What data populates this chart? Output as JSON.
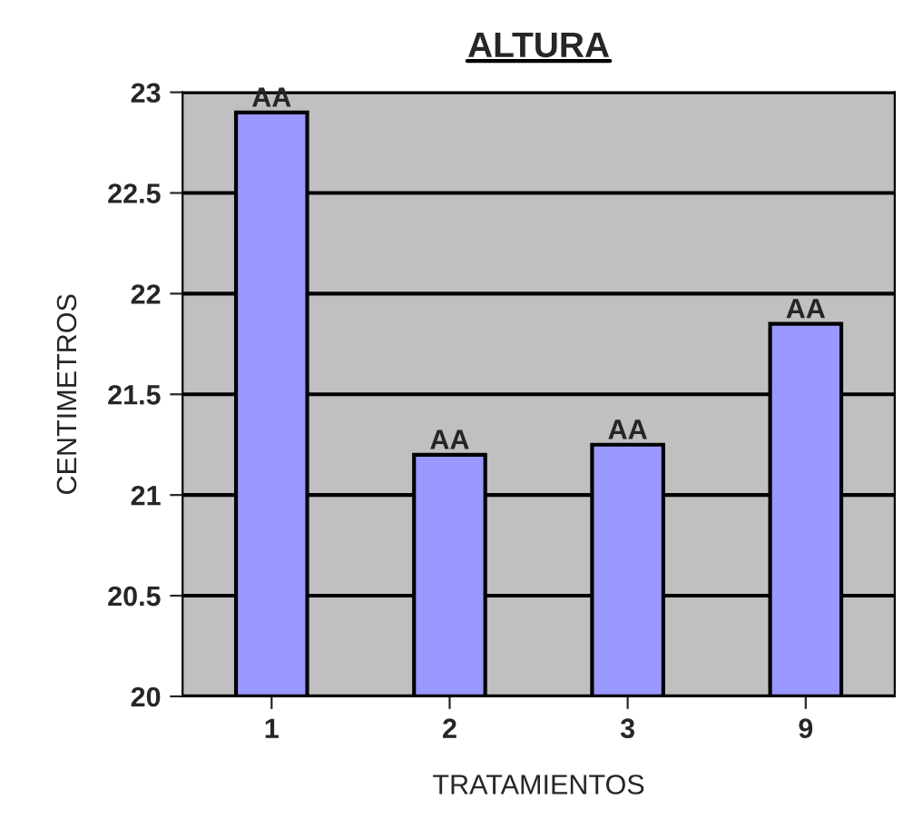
{
  "chart_data": {
    "type": "bar",
    "title": "ALTURA",
    "xlabel": "TRATAMIENTOS",
    "ylabel": "CENTIMETROS",
    "categories": [
      "1",
      "2",
      "3",
      "9"
    ],
    "values": [
      22.9,
      21.2,
      21.25,
      21.85
    ],
    "value_labels": [
      "AA",
      "AA",
      "AA",
      "AA"
    ],
    "color": "#9999ff",
    "ylim": [
      20,
      23
    ],
    "yticks": [
      20,
      20.5,
      21,
      21.5,
      22,
      22.5,
      23
    ],
    "grid": "y"
  }
}
